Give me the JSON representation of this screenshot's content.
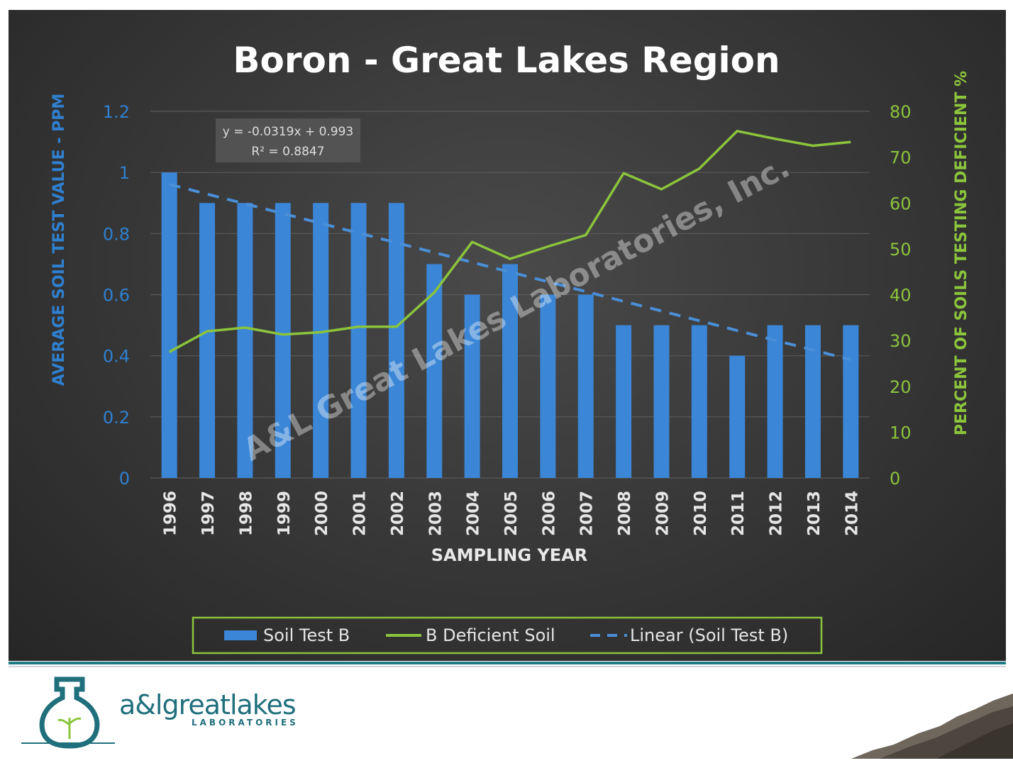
{
  "chart_data": {
    "type": "bar",
    "title": "Boron - Great Lakes Region",
    "xlabel": "SAMPLING YEAR",
    "ylabel": "AVERAGE SOIL TEST VALUE - PPM",
    "y2label": "PERCENT OF SOILS TESTING DEFICIENT %",
    "categories": [
      "1996",
      "1997",
      "1998",
      "1999",
      "2000",
      "2001",
      "2002",
      "2003",
      "2004",
      "2005",
      "2006",
      "2007",
      "2008",
      "2009",
      "2010",
      "2011",
      "2012",
      "2013",
      "2014"
    ],
    "ylim": [
      0,
      1.2
    ],
    "y2lim": [
      0,
      80
    ],
    "yticks": [
      "0",
      "0.2",
      "0.4",
      "0.6",
      "0.8",
      "1",
      "1.2"
    ],
    "y2ticks": [
      "0",
      "10",
      "20",
      "30",
      "40",
      "50",
      "60",
      "70",
      "80"
    ],
    "grid": true,
    "legend_position": "bottom",
    "series": [
      {
        "name": "Soil Test B",
        "type": "bar",
        "axis": "left",
        "color": "#3b86d6",
        "values": [
          1.0,
          0.9,
          0.9,
          0.9,
          0.9,
          0.9,
          0.9,
          0.7,
          0.6,
          0.7,
          0.6,
          0.6,
          0.5,
          0.5,
          0.5,
          0.4,
          0.5,
          0.5,
          0.5
        ]
      },
      {
        "name": "B Deficient Soil",
        "type": "line",
        "axis": "right",
        "color": "#8cc43c",
        "values": [
          27.5,
          32,
          32.8,
          31.3,
          31.8,
          33,
          33,
          40.5,
          51.5,
          47.8,
          50.5,
          53,
          66.5,
          63,
          67.5,
          75.7,
          74,
          72.5,
          73.3
        ]
      },
      {
        "name": "Linear (Soil Test B)",
        "type": "trendline",
        "axis": "left",
        "color": "#4a8fd8",
        "slope": -0.0319,
        "intercept": 0.993
      }
    ],
    "annotations": {
      "equation": "y = -0.0319x + 0.993",
      "r_squared": "R² = 0.8847",
      "watermark": "A&L Great Lakes Laboratories, Inc."
    }
  },
  "footer": {
    "logo_text": "a&lgreatlakes",
    "logo_subtext": "LABORATORIES"
  }
}
